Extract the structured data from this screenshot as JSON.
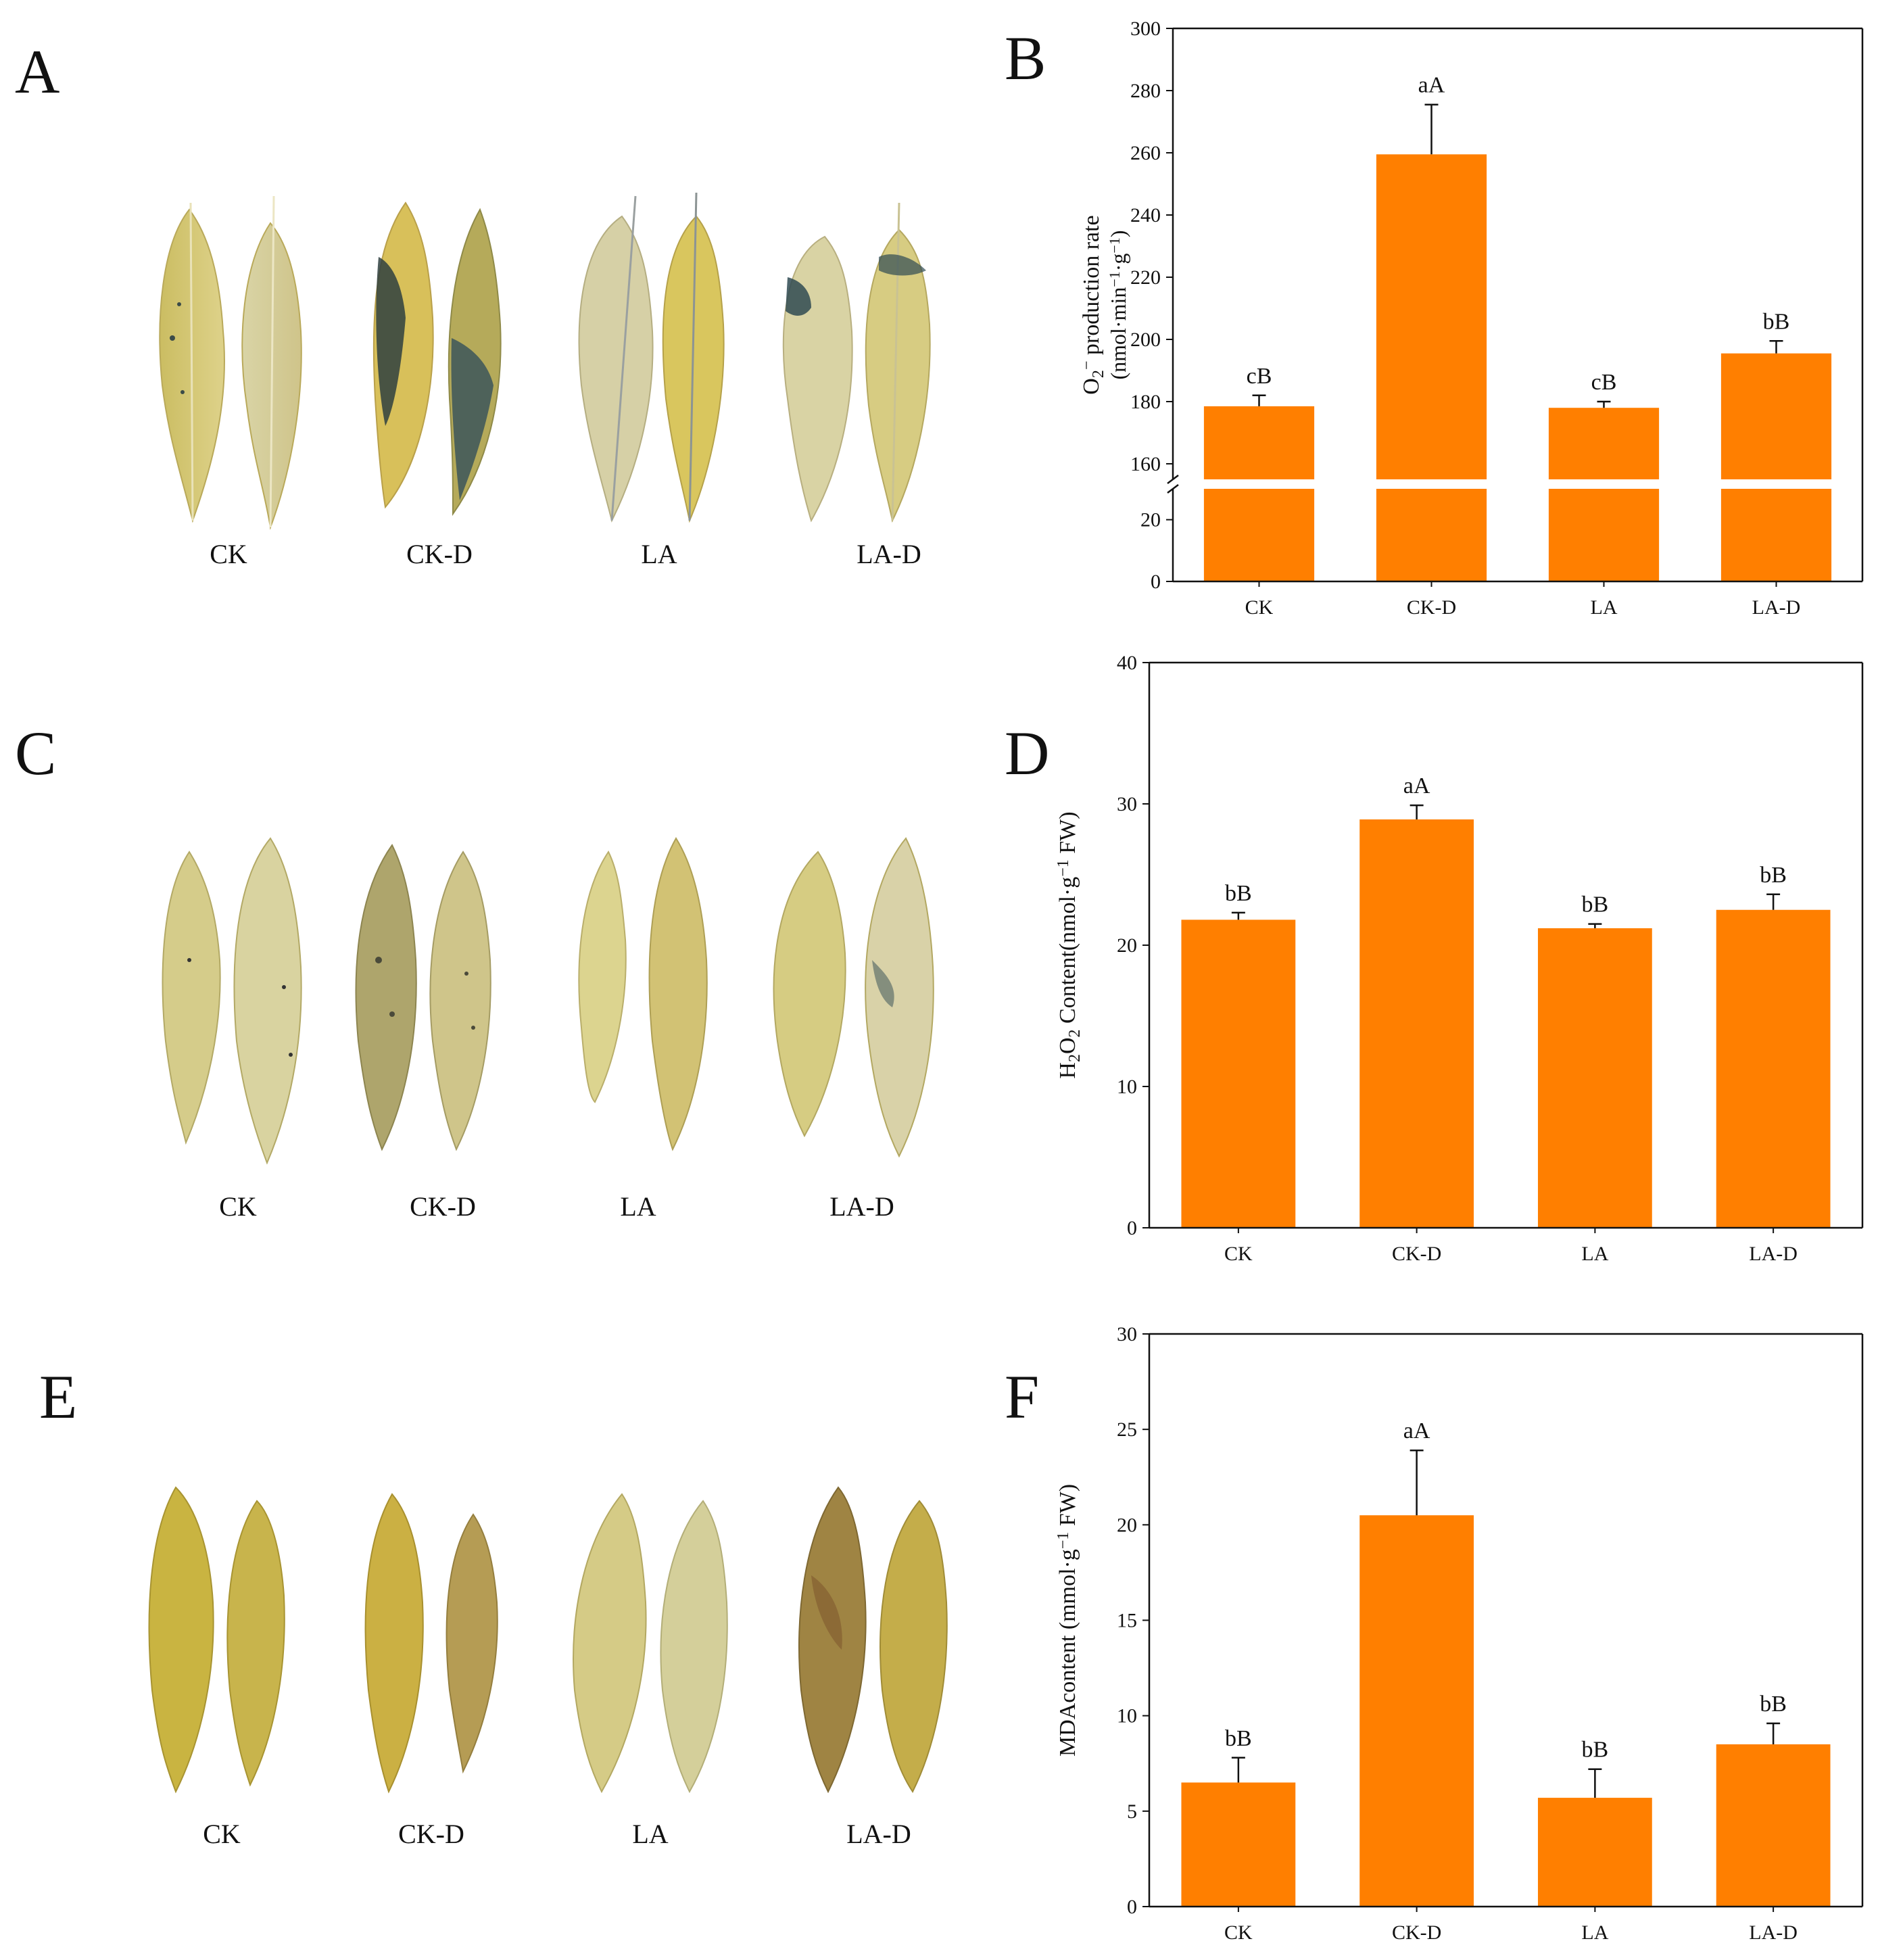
{
  "figure": {
    "panels": {
      "A": {
        "letter": "A",
        "labels": [
          "CK",
          "CK-D",
          "LA",
          "LA-D"
        ]
      },
      "C": {
        "letter": "C",
        "labels": [
          "CK",
          "CK-D",
          "LA",
          "LA-D"
        ]
      },
      "E": {
        "letter": "E",
        "labels": [
          "CK",
          "CK-D",
          "LA",
          "LA-D"
        ]
      }
    }
  },
  "colors": {
    "bar": "#ff7f00",
    "axis": "#111111",
    "leaf_yellow": "#d6c56a",
    "leaf_pale": "#d8d2a2",
    "stain_blue": "#2f4a52",
    "stain_brown": "#8a6a3a"
  },
  "chart_data": [
    {
      "panel": "B",
      "letter": "B",
      "type": "bar",
      "categories": [
        "CK",
        "CK-D",
        "LA",
        "LA-D"
      ],
      "values": [
        178.5,
        259.5,
        178,
        195.5
      ],
      "errors": [
        3.5,
        16,
        2,
        4
      ],
      "annotations": [
        "cB",
        "aA",
        "cB",
        "bB"
      ],
      "ylabel_parts": [
        "O",
        "2",
        "−",
        " production rate"
      ],
      "ylabel_unit_parts": [
        "(nmol·min",
        "−1",
        "·g",
        "−1",
        ")"
      ],
      "ylim": [
        0,
        300
      ],
      "axis_break": {
        "lower": [
          0,
          30
        ],
        "upper": [
          155,
          300
        ]
      },
      "yticks_lower": [
        0,
        20
      ],
      "yticks_upper": [
        160,
        180,
        200,
        220,
        240,
        260,
        280,
        300
      ]
    },
    {
      "panel": "D",
      "letter": "D",
      "type": "bar",
      "categories": [
        "CK",
        "CK-D",
        "LA",
        "LA-D"
      ],
      "values": [
        21.8,
        28.9,
        21.2,
        22.5
      ],
      "errors": [
        0.5,
        1.0,
        0.3,
        1.1
      ],
      "annotations": [
        "bB",
        "aA",
        "bB",
        "bB"
      ],
      "ylabel_parts": [
        "H",
        "2",
        "O",
        "2",
        " Content(nmol·g",
        "−1",
        " FW)"
      ],
      "ylim": [
        0,
        40
      ],
      "yticks": [
        0,
        10,
        20,
        30,
        40
      ]
    },
    {
      "panel": "F",
      "letter": "F",
      "type": "bar",
      "categories": [
        "CK",
        "CK-D",
        "LA",
        "LA-D"
      ],
      "values": [
        6.5,
        20.5,
        5.7,
        8.5
      ],
      "errors": [
        1.3,
        3.4,
        1.5,
        1.1
      ],
      "annotations": [
        "bB",
        "aA",
        "bB",
        "bB"
      ],
      "ylabel_parts": [
        "MDAcontent (mmol·g",
        "−1",
        " FW)"
      ],
      "ylim": [
        0,
        30
      ],
      "yticks": [
        0,
        5,
        10,
        15,
        20,
        25,
        30
      ]
    }
  ]
}
